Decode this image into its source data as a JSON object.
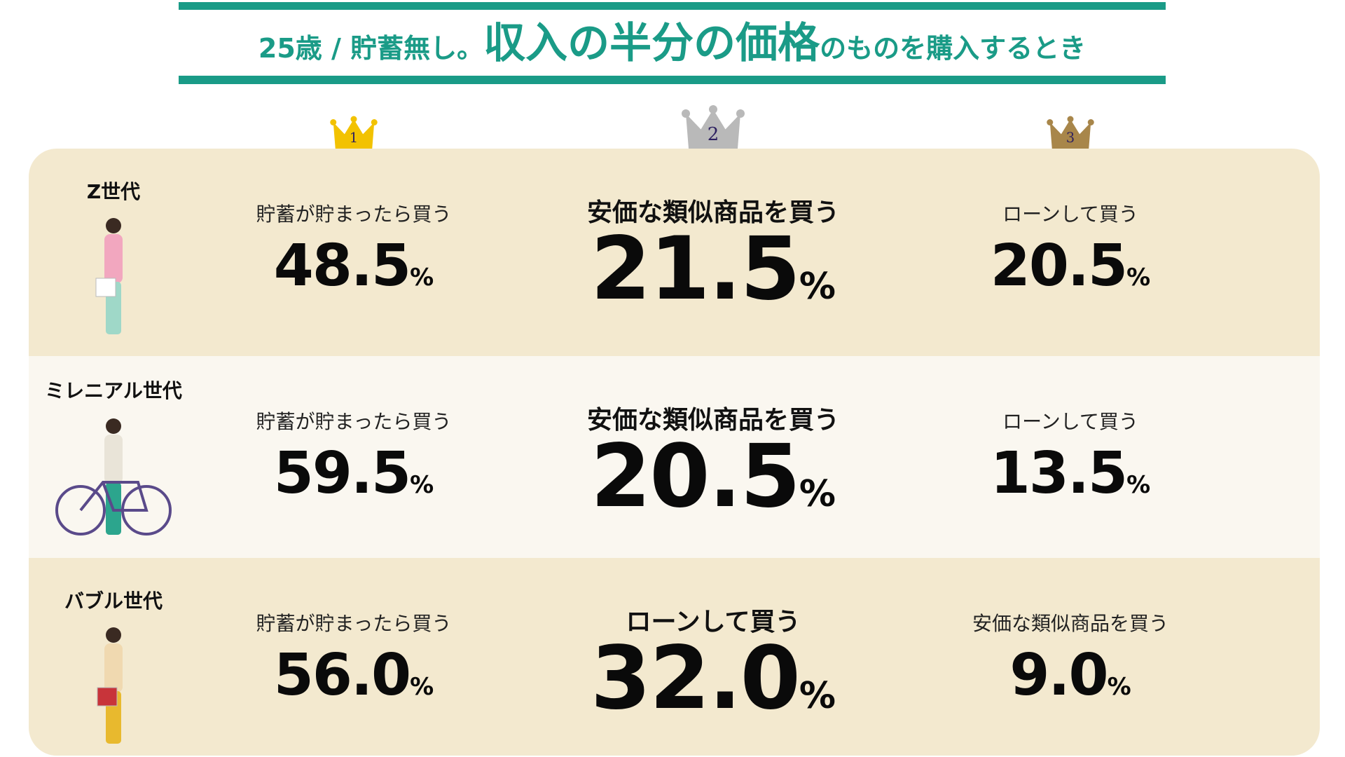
{
  "header": {
    "lead": "25歳 / 貯蓄無し。",
    "emphasis": "収入の半分の価格",
    "tail": "のものを購入するとき"
  },
  "ranks": [
    "1",
    "2",
    "3"
  ],
  "rows": [
    {
      "generation": "Z世代",
      "items": [
        {
          "label": "貯蓄が貯まったら買う",
          "value": "48.5",
          "unit": "%"
        },
        {
          "label": "安価な類似商品を買う",
          "value": "21.5",
          "unit": "%"
        },
        {
          "label": "ローンして買う",
          "value": "20.5",
          "unit": "%"
        }
      ]
    },
    {
      "generation": "ミレニアル世代",
      "items": [
        {
          "label": "貯蓄が貯まったら買う",
          "value": "59.5",
          "unit": "%"
        },
        {
          "label": "安価な類似商品を買う",
          "value": "20.5",
          "unit": "%"
        },
        {
          "label": "ローンして買う",
          "value": "13.5",
          "unit": "%"
        }
      ]
    },
    {
      "generation": "バブル世代",
      "items": [
        {
          "label": "貯蓄が貯まったら買う",
          "value": "56.0",
          "unit": "%"
        },
        {
          "label": "ローンして買う",
          "value": "32.0",
          "unit": "%"
        },
        {
          "label": "安価な類似商品を買う",
          "value": "9.0",
          "unit": "%"
        }
      ]
    }
  ]
}
